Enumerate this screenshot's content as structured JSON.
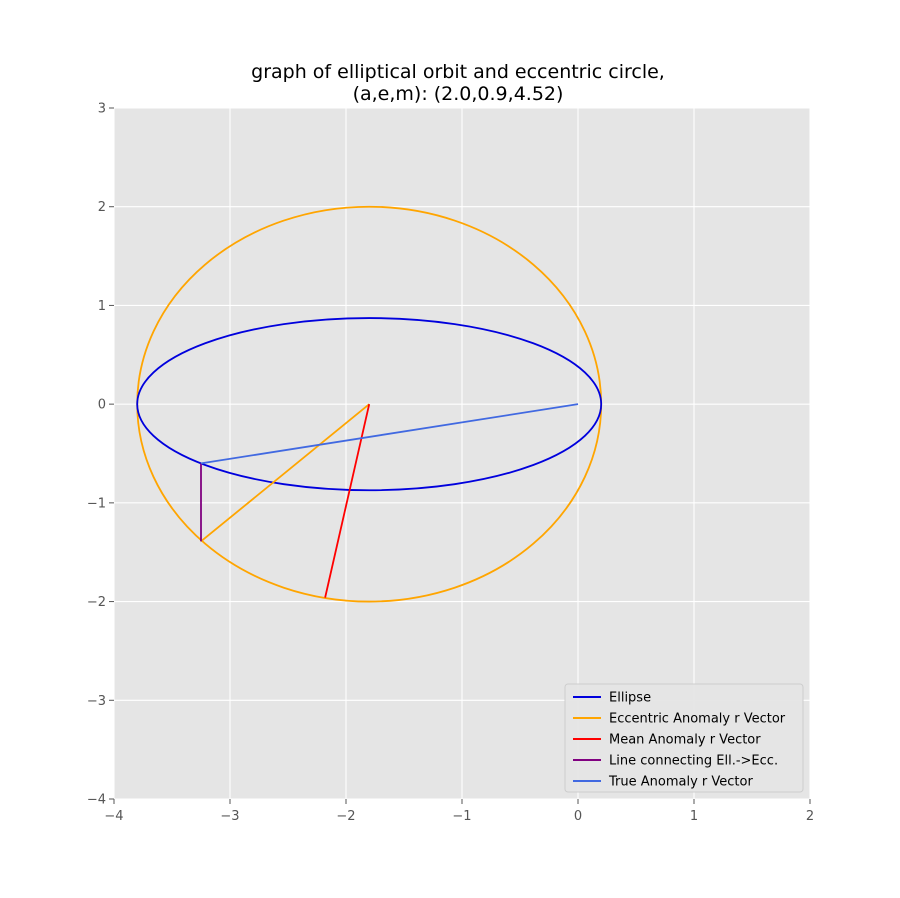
{
  "chart_data": {
    "type": "line",
    "title": "graph of elliptical orbit and eccentric circle,",
    "subtitle": "(a,e,m): (2.0,0.9,4.52)",
    "xlabel": "",
    "ylabel": "",
    "xlim": [
      -4,
      2
    ],
    "ylim": [
      -4,
      3
    ],
    "xticks": [
      -4,
      -3,
      -2,
      -1,
      0,
      1,
      2
    ],
    "yticks": [
      -4,
      -3,
      -2,
      -1,
      0,
      1,
      2,
      3
    ],
    "xtick_labels": [
      "−4",
      "−3",
      "−2",
      "−1",
      "0",
      "1",
      "2"
    ],
    "ytick_labels": [
      "−4",
      "−3",
      "−2",
      "−1",
      "0",
      "1",
      "2",
      "3"
    ],
    "grid": true,
    "legend_position": "lower-right",
    "background": "#e5e5e5",
    "series": [
      {
        "name": "Ellipse",
        "color": "#0000dd",
        "shape": "ellipse",
        "center": [
          -1.8,
          0
        ],
        "rx": 2.0,
        "ry": 0.872
      },
      {
        "name": "Eccentric Anomaly r Vector",
        "color": "#ffa500",
        "shape": "polyline",
        "x": [
          -1.8,
          -3.25
        ],
        "y": [
          0,
          -1.39
        ]
      },
      {
        "name": "Mean Anomaly r Vector",
        "color": "#ff0000",
        "shape": "polyline",
        "x": [
          -1.8,
          -2.18
        ],
        "y": [
          0,
          -1.96
        ]
      },
      {
        "name": "Line connecting Ell.->Ecc.",
        "color": "#800080",
        "shape": "polyline",
        "x": [
          -3.25,
          -3.25
        ],
        "y": [
          -0.6,
          -1.39
        ]
      },
      {
        "name": "True Anomaly r Vector",
        "color": "#4169e1",
        "shape": "polyline",
        "x": [
          0,
          -3.25
        ],
        "y": [
          0,
          -0.6
        ]
      }
    ],
    "eccentric_circle": {
      "color": "#ffa500",
      "center": [
        -1.8,
        0
      ],
      "r": 2.0
    }
  }
}
